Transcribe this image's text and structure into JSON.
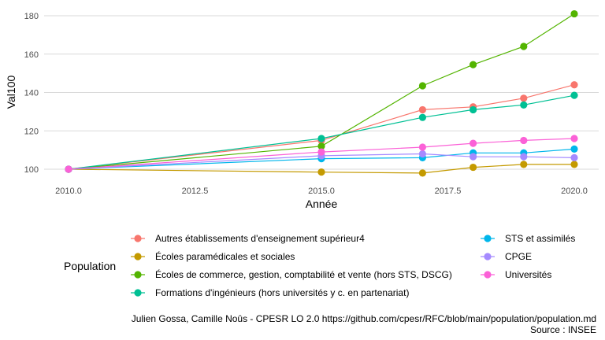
{
  "chart_data": {
    "type": "line",
    "xlabel": "Année",
    "ylabel": "Val100",
    "xlim": [
      2010,
      2020
    ],
    "ylim": [
      95,
      183
    ],
    "x_ticks": [
      2010,
      2012.5,
      2015,
      2017.5,
      2020
    ],
    "x_tick_labels": [
      "2010.0",
      "2012.5",
      "2015.0",
      "2017.5",
      "2020.0"
    ],
    "y_ticks": [
      100,
      120,
      140,
      160,
      180
    ],
    "y_tick_labels": [
      "100",
      "120",
      "140",
      "160",
      "180"
    ],
    "grid": true,
    "legend": {
      "title": "Population",
      "placement": "bottom"
    },
    "series": [
      {
        "name": "Autres établissements d'enseignement supérieur4",
        "color": "#F8766D",
        "points": [
          [
            2010,
            100
          ],
          [
            2015,
            115
          ],
          [
            2017,
            131
          ],
          [
            2018,
            132.5
          ],
          [
            2019,
            137
          ],
          [
            2020,
            144
          ]
        ]
      },
      {
        "name": "Écoles paramédicales et sociales",
        "color": "#C49A00",
        "points": [
          [
            2010,
            100
          ],
          [
            2015,
            98.5
          ],
          [
            2017,
            98
          ],
          [
            2018,
            101
          ],
          [
            2019,
            102.5
          ],
          [
            2020,
            102.5
          ]
        ]
      },
      {
        "name": "Écoles de commerce, gestion, comptabilité et vente (hors STS, DSCG)",
        "color": "#53B400",
        "points": [
          [
            2010,
            100
          ],
          [
            2015,
            112
          ],
          [
            2017,
            143.5
          ],
          [
            2018,
            154.5
          ],
          [
            2019,
            164
          ],
          [
            2020,
            181
          ]
        ]
      },
      {
        "name": "Formations d'ingénieurs (hors universités y c. en partenariat)",
        "color": "#00C094",
        "points": [
          [
            2010,
            100
          ],
          [
            2015,
            116
          ],
          [
            2017,
            127
          ],
          [
            2018,
            131
          ],
          [
            2019,
            133.5
          ],
          [
            2020,
            138.5
          ]
        ]
      },
      {
        "name": "STS et assimilés",
        "color": "#00B6EB",
        "points": [
          [
            2010,
            100
          ],
          [
            2015,
            105.5
          ],
          [
            2017,
            106
          ],
          [
            2018,
            108.5
          ],
          [
            2019,
            108.5
          ],
          [
            2020,
            110.5
          ]
        ]
      },
      {
        "name": "CPGE",
        "color": "#A58AFF",
        "points": [
          [
            2010,
            100
          ],
          [
            2015,
            107
          ],
          [
            2017,
            108
          ],
          [
            2018,
            106.5
          ],
          [
            2019,
            106.5
          ],
          [
            2020,
            106
          ]
        ]
      },
      {
        "name": "Universités",
        "color": "#FB61D7",
        "points": [
          [
            2010,
            100
          ],
          [
            2015,
            109
          ],
          [
            2017,
            111.5
          ],
          [
            2018,
            113.5
          ],
          [
            2019,
            115
          ],
          [
            2020,
            116
          ]
        ]
      }
    ],
    "caption": [
      "Julien Gossa, Camille Noûs - CPESR LO 2.0 https://github.com/cpesr/RFC/blob/main/population/population.md",
      "Source : INSEE"
    ]
  }
}
